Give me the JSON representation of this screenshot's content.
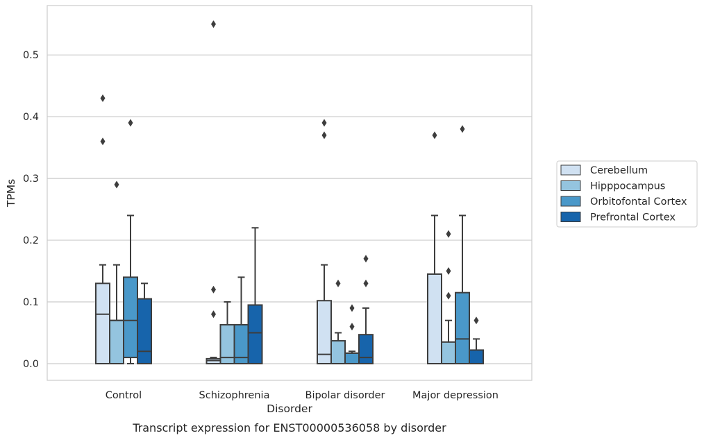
{
  "chart_data": {
    "type": "box",
    "title": "",
    "caption": "Transcript expression for ENST00000536058 by disorder",
    "xlabel": "Disorder",
    "ylabel": "TPMs",
    "ylim": [
      -0.027,
      0.58
    ],
    "yticks": [
      0.0,
      0.1,
      0.2,
      0.3,
      0.4,
      0.5
    ],
    "ytick_labels": [
      "0.0",
      "0.1",
      "0.2",
      "0.3",
      "0.4",
      "0.5"
    ],
    "grid": true,
    "legend_position": "right",
    "categories": [
      "Control",
      "Schizophrenia",
      "Bipolar disorder",
      "Major depression"
    ],
    "series": [
      {
        "name": "Cerebellum",
        "color": "#d0e1f2",
        "boxes": [
          {
            "whislo": 0.0,
            "q1": 0.0,
            "med": 0.08,
            "q3": 0.13,
            "whishi": 0.16,
            "fliers": [
              0.36,
              0.43
            ]
          },
          {
            "whislo": 0.0,
            "q1": 0.0,
            "med": 0.005,
            "q3": 0.008,
            "whishi": 0.01,
            "fliers": [
              0.08,
              0.12,
              0.55
            ]
          },
          {
            "whislo": 0.0,
            "q1": 0.0,
            "med": 0.015,
            "q3": 0.102,
            "whishi": 0.16,
            "fliers": [
              0.37,
              0.39
            ]
          },
          {
            "whislo": 0.0,
            "q1": 0.0,
            "med": 0.0,
            "q3": 0.145,
            "whishi": 0.24,
            "fliers": [
              0.37
            ]
          }
        ]
      },
      {
        "name": "Hipppocampus",
        "color": "#94c4df",
        "boxes": [
          {
            "whislo": 0.0,
            "q1": 0.0,
            "med": 0.07,
            "q3": 0.07,
            "whishi": 0.16,
            "fliers": [
              0.29
            ]
          },
          {
            "whislo": 0.0,
            "q1": 0.0,
            "med": 0.01,
            "q3": 0.063,
            "whishi": 0.1,
            "fliers": []
          },
          {
            "whislo": 0.0,
            "q1": 0.0,
            "med": 0.0,
            "q3": 0.037,
            "whishi": 0.05,
            "fliers": [
              0.13
            ]
          },
          {
            "whislo": 0.0,
            "q1": 0.0,
            "med": 0.0,
            "q3": 0.035,
            "whishi": 0.07,
            "fliers": [
              0.11,
              0.15,
              0.21
            ]
          }
        ]
      },
      {
        "name": "Orbitofontal Cortex",
        "color": "#4a98c9",
        "boxes": [
          {
            "whislo": 0.0,
            "q1": 0.01,
            "med": 0.07,
            "q3": 0.14,
            "whishi": 0.24,
            "fliers": [
              0.39
            ]
          },
          {
            "whislo": 0.0,
            "q1": 0.0,
            "med": 0.01,
            "q3": 0.063,
            "whishi": 0.14,
            "fliers": []
          },
          {
            "whislo": 0.0,
            "q1": 0.0,
            "med": 0.017,
            "q3": 0.017,
            "whishi": 0.02,
            "fliers": [
              0.06,
              0.09
            ]
          },
          {
            "whislo": 0.0,
            "q1": 0.0,
            "med": 0.04,
            "q3": 0.115,
            "whishi": 0.24,
            "fliers": [
              0.38
            ]
          }
        ]
      },
      {
        "name": "Prefrontal Cortex",
        "color": "#1764ab",
        "boxes": [
          {
            "whislo": 0.0,
            "q1": 0.0,
            "med": 0.02,
            "q3": 0.105,
            "whishi": 0.13,
            "fliers": []
          },
          {
            "whislo": 0.0,
            "q1": 0.0,
            "med": 0.05,
            "q3": 0.095,
            "whishi": 0.22,
            "fliers": []
          },
          {
            "whislo": 0.0,
            "q1": 0.0,
            "med": 0.01,
            "q3": 0.047,
            "whishi": 0.09,
            "fliers": [
              0.13,
              0.17
            ]
          },
          {
            "whislo": 0.0,
            "q1": 0.0,
            "med": 0.0,
            "q3": 0.022,
            "whishi": 0.04,
            "fliers": [
              0.07
            ]
          }
        ]
      }
    ],
    "colors": {
      "grid": "#cccccc",
      "frame": "#cccccc",
      "box_edge": "#3d3d3d",
      "flier": "#3d3d3d",
      "legend_border": "#cccccc"
    }
  }
}
